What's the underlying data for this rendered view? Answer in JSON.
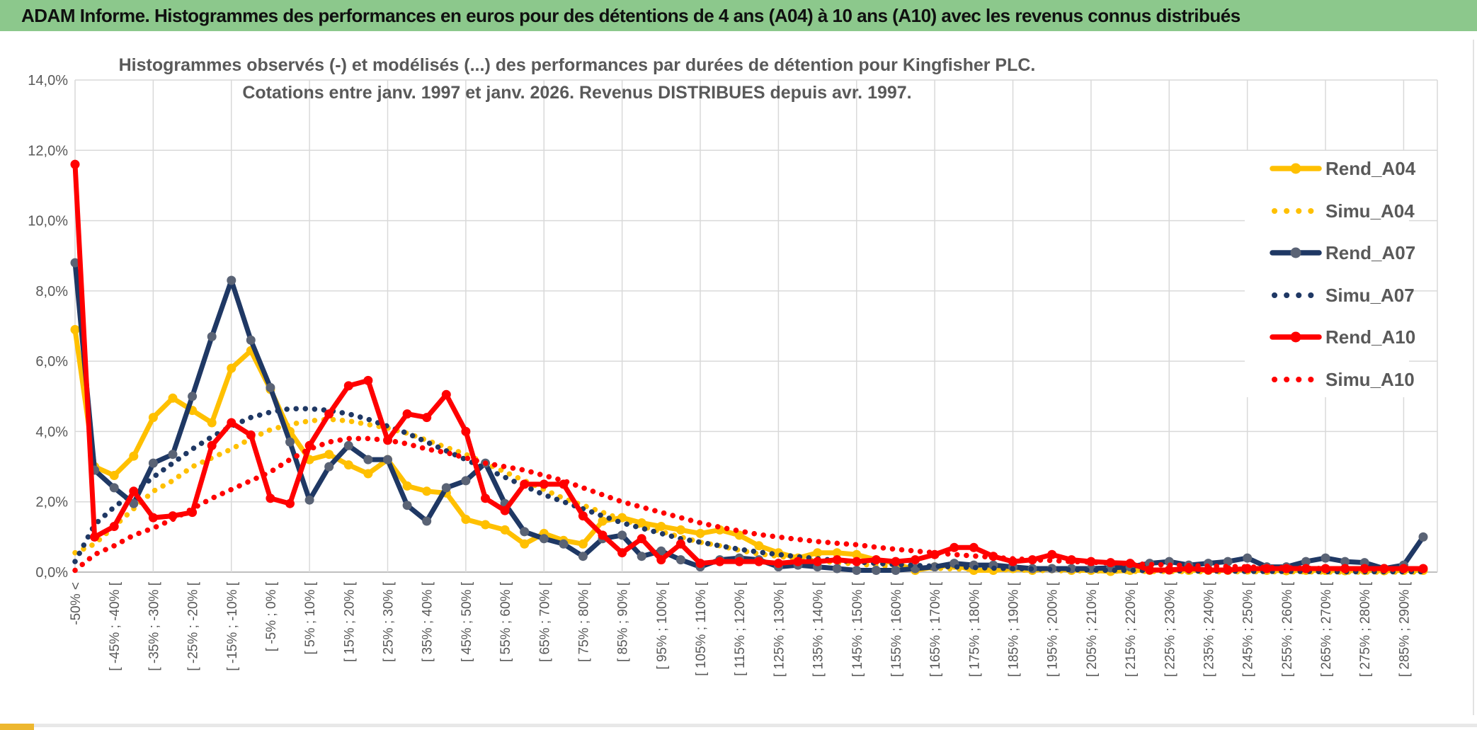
{
  "header": {
    "title": "ADAM Informe. Histogrammes des performances en euros pour des détentions de 4 ans (A04) à 10 ans (A10) avec les revenus connus distribués",
    "bg_color": "#8CC88C",
    "accent_color": "#EDB72F"
  },
  "chart": {
    "title_line1": "Histogrammes observés (-) et modélisés (...) des performances par durées de détention pour Kingfisher PLC.",
    "title_line2": "Cotations entre janv. 1997 et janv. 2026. Revenus DISTRIBUES depuis avr. 1997.",
    "title_color": "#595959",
    "grid_color": "#D9D9D9",
    "axis_label_color": "#595959"
  },
  "chart_data": {
    "type": "line",
    "title": "Histogrammes observés (-) et modélisés (...) des performances par durées de détention pour Kingfisher PLC. Cotations entre janv. 1997 et janv. 2026. Revenus DISTRIBUES depuis avr. 1997.",
    "ylabel": "",
    "xlabel": "",
    "ylim": [
      0,
      14
    ],
    "y_tick_labels": [
      "14,0%",
      "12,0%",
      "10,0%",
      "8,0%",
      "6,0%",
      "4,0%",
      "2,0%",
      "0,0%"
    ],
    "bins_total": 70,
    "x_tick_every": 2,
    "x_tick_labels": [
      "-50% <",
      "[ -45% ; -40% [",
      "[ -35% ; -30% [",
      "[ -25% ; -20% [",
      "[ -15% ; -10% [",
      "[ -5% ; 0% [",
      "[ 5% ; 10% [",
      "[ 15% ; 20% [",
      "[ 25% ; 30% [",
      "[ 35% ; 40% [",
      "[ 45% ; 50% [",
      "[ 55% ; 60% [",
      "[ 65% ; 70% [",
      "[ 75% ; 80% [",
      "[ 85% ; 90% [",
      "[ 95% ; 100% [",
      "[ 105% ; 110% [",
      "[ 115% ; 120% [",
      "[ 125% ; 130% [",
      "[ 135% ; 140% [",
      "[ 145% ; 150% [",
      "[ 155% ; 160% [",
      "[ 165% ; 170% [",
      "[ 175% ; 180% [",
      "[ 185% ; 190% [",
      "[ 195% ; 200% [",
      "[ 205% ; 210% [",
      "[ 215% ; 220% [",
      "[ 225% ; 230% [",
      "[ 235% ; 240% [",
      "[ 245% ; 250% [",
      "[ 255% ; 260% [",
      "[ 265% ; 270% [",
      "[ 275% ; 280% [",
      "[ 285% ; 290% ["
    ],
    "legend": {
      "position": "right-inside"
    },
    "series": [
      {
        "name": "Rend_A04",
        "style": "solid",
        "color": "#FFC000",
        "marker_color": "#FFC000",
        "values": [
          6.9,
          3.0,
          2.75,
          3.3,
          4.4,
          4.95,
          4.6,
          4.25,
          5.8,
          6.3,
          5.2,
          4.0,
          3.2,
          3.35,
          3.05,
          2.8,
          3.2,
          2.45,
          2.3,
          2.25,
          1.5,
          1.35,
          1.2,
          0.8,
          1.1,
          0.9,
          0.8,
          1.45,
          1.55,
          1.4,
          1.3,
          1.2,
          1.1,
          1.2,
          1.05,
          0.75,
          0.55,
          0.4,
          0.55,
          0.55,
          0.5,
          0.35,
          0.25,
          0.05,
          0.15,
          0.2,
          0.05,
          0.05,
          0.1,
          0.05,
          0.1,
          0.05,
          0.05,
          0.02,
          0.05,
          0.05,
          0.06,
          0.05,
          0.05,
          0.05,
          0.06,
          0.05,
          0.04,
          0.05,
          0.05,
          0.04,
          0.05,
          0.04,
          0.05,
          0.05
        ]
      },
      {
        "name": "Simu_A04",
        "style": "dotted",
        "color": "#FFC000",
        "values": [
          0.55,
          0.8,
          1.3,
          1.8,
          2.3,
          2.6,
          3.0,
          3.25,
          3.5,
          3.8,
          4.05,
          4.2,
          4.3,
          4.35,
          4.3,
          4.2,
          4.1,
          3.95,
          3.75,
          3.55,
          3.35,
          3.1,
          2.85,
          2.6,
          2.35,
          2.1,
          1.9,
          1.7,
          1.5,
          1.3,
          1.15,
          1.0,
          0.85,
          0.75,
          0.62,
          0.52,
          0.45,
          0.38,
          0.32,
          0.27,
          0.23,
          0.19,
          0.16,
          0.13,
          0.11,
          0.09,
          0.08,
          0.07,
          0.06,
          0.05,
          0.04,
          0.04,
          0.03,
          0.03,
          0.02,
          0.02,
          0.02,
          0.01,
          0.01,
          0.01,
          0.01,
          0.01,
          0.01,
          0.01,
          0.0,
          0.0,
          0.0,
          0.0,
          0.0,
          0.0
        ]
      },
      {
        "name": "Rend_A07",
        "style": "solid",
        "color": "#1F3864",
        "marker_color": "#5A6375",
        "values": [
          8.8,
          2.9,
          2.4,
          1.95,
          3.1,
          3.35,
          5.0,
          6.7,
          8.3,
          6.6,
          5.25,
          3.7,
          2.05,
          3.0,
          3.6,
          3.2,
          3.2,
          1.9,
          1.45,
          2.4,
          2.6,
          3.1,
          1.95,
          1.15,
          0.95,
          0.8,
          0.45,
          0.95,
          1.05,
          0.45,
          0.6,
          0.35,
          0.15,
          0.35,
          0.4,
          0.35,
          0.15,
          0.2,
          0.15,
          0.1,
          0.05,
          0.05,
          0.05,
          0.1,
          0.15,
          0.25,
          0.2,
          0.2,
          0.15,
          0.1,
          0.1,
          0.1,
          0.1,
          0.12,
          0.15,
          0.25,
          0.3,
          0.2,
          0.25,
          0.3,
          0.4,
          0.15,
          0.15,
          0.3,
          0.4,
          0.3,
          0.27,
          0.1,
          0.2,
          1.0
        ]
      },
      {
        "name": "Simu_A07",
        "style": "dotted",
        "color": "#1F3864",
        "values": [
          0.3,
          1.35,
          1.85,
          2.25,
          2.7,
          3.1,
          3.5,
          3.85,
          4.15,
          4.4,
          4.55,
          4.65,
          4.65,
          4.6,
          4.5,
          4.35,
          4.15,
          3.95,
          3.7,
          3.45,
          3.2,
          2.95,
          2.7,
          2.45,
          2.2,
          2.0,
          1.8,
          1.6,
          1.4,
          1.25,
          1.1,
          0.95,
          0.85,
          0.75,
          0.65,
          0.57,
          0.5,
          0.44,
          0.38,
          0.33,
          0.29,
          0.25,
          0.22,
          0.19,
          0.17,
          0.15,
          0.13,
          0.11,
          0.1,
          0.09,
          0.08,
          0.07,
          0.06,
          0.05,
          0.05,
          0.04,
          0.04,
          0.03,
          0.03,
          0.03,
          0.02,
          0.02,
          0.02,
          0.02,
          0.01,
          0.01,
          0.01,
          0.01,
          0.01,
          0.01
        ]
      },
      {
        "name": "Rend_A10",
        "style": "solid",
        "color": "#FF0000",
        "marker_color": "#FF0000",
        "values": [
          11.6,
          1.0,
          1.3,
          2.3,
          1.55,
          1.6,
          1.7,
          3.6,
          4.25,
          3.9,
          2.1,
          1.95,
          3.6,
          4.5,
          5.3,
          5.45,
          3.75,
          4.5,
          4.4,
          5.05,
          4.0,
          2.1,
          1.75,
          2.5,
          2.5,
          2.5,
          1.6,
          1.05,
          0.55,
          0.95,
          0.35,
          0.8,
          0.25,
          0.3,
          0.3,
          0.3,
          0.25,
          0.3,
          0.3,
          0.35,
          0.3,
          0.35,
          0.3,
          0.35,
          0.5,
          0.7,
          0.7,
          0.45,
          0.3,
          0.35,
          0.5,
          0.35,
          0.3,
          0.27,
          0.25,
          0.06,
          0.06,
          0.1,
          0.06,
          0.06,
          0.1,
          0.1,
          0.1,
          0.1,
          0.1,
          0.1,
          0.1,
          0.1,
          0.1,
          0.1
        ]
      },
      {
        "name": "Simu_A10",
        "style": "dotted",
        "color": "#FF0000",
        "values": [
          0.05,
          0.5,
          0.75,
          1.05,
          1.25,
          1.5,
          1.8,
          2.1,
          2.35,
          2.6,
          2.85,
          3.2,
          3.5,
          3.7,
          3.8,
          3.8,
          3.75,
          3.65,
          3.5,
          3.4,
          3.25,
          3.1,
          3.0,
          2.9,
          2.75,
          2.6,
          2.4,
          2.2,
          2.0,
          1.85,
          1.7,
          1.55,
          1.4,
          1.28,
          1.17,
          1.07,
          1.0,
          0.93,
          0.87,
          0.82,
          0.78,
          0.71,
          0.65,
          0.6,
          0.55,
          0.5,
          0.46,
          0.42,
          0.38,
          0.35,
          0.33,
          0.3,
          0.28,
          0.26,
          0.24,
          0.22,
          0.2,
          0.19,
          0.17,
          0.16,
          0.15,
          0.13,
          0.12,
          0.11,
          0.1,
          0.09,
          0.09,
          0.08,
          0.08,
          0.07
        ]
      }
    ]
  }
}
